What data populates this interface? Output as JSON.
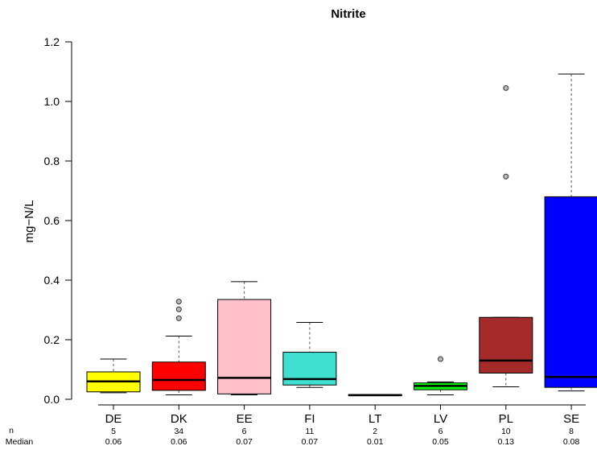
{
  "chart_data": {
    "type": "boxplot",
    "title": "Nitrite",
    "ylabel": "mg−N/L",
    "ylim": [
      0,
      1.2
    ],
    "yticks": [
      0.0,
      0.2,
      0.4,
      0.6,
      0.8,
      1.0,
      1.2
    ],
    "ytick_labels": [
      "0.0",
      "0.2",
      "0.4",
      "0.6",
      "0.8",
      "1.0",
      "1.2"
    ],
    "row_labels": {
      "n": "n",
      "median": "Median"
    },
    "categories": [
      {
        "label": "DE",
        "color": "#ffff00",
        "n": "5",
        "median_label": "0.06",
        "q1": 0.025,
        "median": 0.06,
        "q3": 0.092,
        "lower": 0.022,
        "upper": 0.135,
        "outliers": []
      },
      {
        "label": "DK",
        "color": "#ff0000",
        "n": "34",
        "median_label": "0.06",
        "q1": 0.03,
        "median": 0.065,
        "q3": 0.125,
        "lower": 0.015,
        "upper": 0.212,
        "outliers": [
          0.272,
          0.302,
          0.328
        ]
      },
      {
        "label": "EE",
        "color": "#ffc0cb",
        "n": "6",
        "median_label": "0.07",
        "q1": 0.018,
        "median": 0.072,
        "q3": 0.335,
        "lower": 0.015,
        "upper": 0.395,
        "outliers": []
      },
      {
        "label": "FI",
        "color": "#40e0d0",
        "n": "11",
        "median_label": "0.07",
        "q1": 0.048,
        "median": 0.068,
        "q3": 0.158,
        "lower": 0.04,
        "upper": 0.258,
        "outliers": []
      },
      {
        "label": "LT",
        "color": "#cccccc",
        "n": "2",
        "median_label": "0.01",
        "q1": 0.012,
        "median": 0.014,
        "q3": 0.016,
        "lower": 0.012,
        "upper": 0.016,
        "outliers": []
      },
      {
        "label": "LV",
        "color": "#00ff00",
        "n": "6",
        "median_label": "0.05",
        "q1": 0.032,
        "median": 0.045,
        "q3": 0.055,
        "lower": 0.015,
        "upper": 0.058,
        "outliers": [
          0.135
        ]
      },
      {
        "label": "PL",
        "color": "#a52a2a",
        "n": "10",
        "median_label": "0.13",
        "q1": 0.088,
        "median": 0.13,
        "q3": 0.275,
        "lower": 0.042,
        "upper": 0.275,
        "outliers": [
          0.748,
          1.045
        ]
      },
      {
        "label": "SE",
        "color": "#0000ff",
        "n": "8",
        "median_label": "0.08",
        "q1": 0.04,
        "median": 0.075,
        "q3": 0.68,
        "lower": 0.028,
        "upper": 1.092,
        "outliers": []
      }
    ]
  }
}
